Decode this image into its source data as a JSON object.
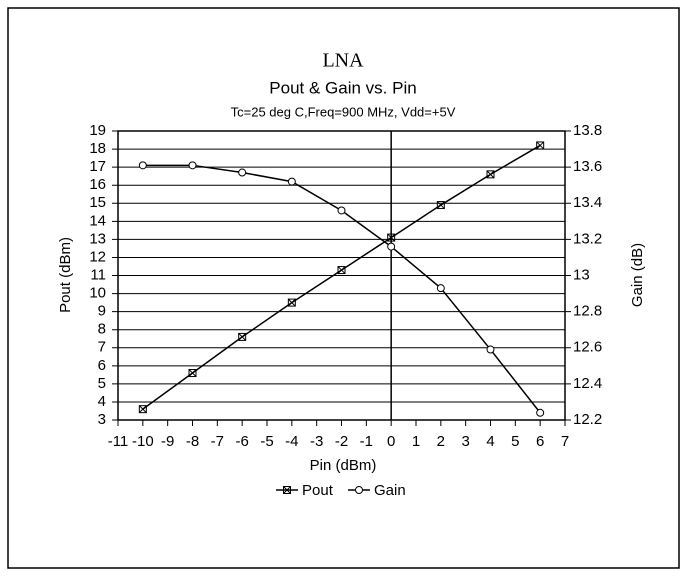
{
  "chart_data": {
    "type": "line",
    "title": "LNA",
    "subtitle": "Pout & Gain vs. Pin",
    "annotation": "Tc=25 deg C,Freq=900 MHz, Vdd=+5V",
    "x_label": "Pin (dBm)",
    "y_label": "Pout (dBm)",
    "y2_label": "Gain (dB)",
    "x": [
      -10,
      -8,
      -6,
      -4,
      -2,
      0,
      2,
      4,
      6
    ],
    "series": [
      {
        "name": "Pout",
        "color": "#000000",
        "values": [
          3.6,
          5.6,
          7.6,
          9.5,
          11.3,
          13.1,
          14.9,
          16.6,
          18.2
        ]
      },
      {
        "name": "Gain",
        "color": "#000000",
        "axis": "y2",
        "values": [
          13.61,
          13.61,
          13.57,
          13.52,
          13.36,
          13.16,
          12.93,
          12.59,
          12.24
        ]
      }
    ],
    "xlim": [
      -11,
      7
    ],
    "xticks": [
      -11,
      -10,
      -9,
      -8,
      -7,
      -6,
      -5,
      -4,
      -3,
      -2,
      -1,
      0,
      1,
      2,
      3,
      4,
      5,
      6,
      7
    ],
    "ylim": [
      3,
      19
    ],
    "yticks": [
      3,
      4,
      5,
      6,
      7,
      8,
      9,
      10,
      11,
      12,
      13,
      14,
      15,
      16,
      17,
      18,
      19
    ],
    "y2lim": [
      12.2,
      13.8
    ],
    "y2ticks": [
      12.2,
      12.4,
      12.6,
      12.8,
      13,
      13.2,
      13.4,
      13.6,
      13.8
    ],
    "grid": true
  }
}
